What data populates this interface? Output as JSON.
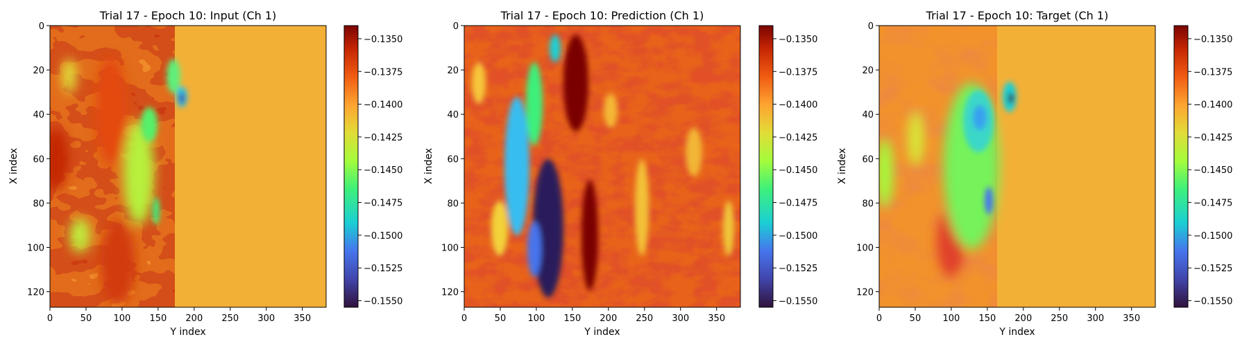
{
  "figure": {
    "colormap": "turbo",
    "colors": {
      "background": "#ffffff",
      "axes_frame": "#000000"
    }
  },
  "chart_data": [
    {
      "type": "heatmap",
      "id": "input",
      "title": "Trial 17 - Epoch 10: Input (Ch 1)",
      "xlabel": "Y index",
      "ylabel": "X index",
      "xlim": [
        0,
        383
      ],
      "ylim": [
        127,
        0
      ],
      "xticks": [
        0,
        50,
        100,
        150,
        200,
        250,
        300,
        350
      ],
      "yticks": [
        0,
        20,
        40,
        60,
        80,
        100,
        120
      ],
      "colorbar": {
        "vmin": -0.1555,
        "vmax": -0.134,
        "ticks": [
          -0.135,
          -0.1375,
          -0.14,
          -0.1425,
          -0.145,
          -0.1475,
          -0.15,
          -0.1525,
          -0.155
        ],
        "tick_labels": [
          "−0.1350",
          "−0.1375",
          "−0.1400",
          "−0.1425",
          "−0.1450",
          "−0.1475",
          "−0.1500",
          "−0.1525",
          "−0.1550"
        ]
      }
    },
    {
      "type": "heatmap",
      "id": "prediction",
      "title": "Trial 17 - Epoch 10: Prediction (Ch 1)",
      "xlabel": "Y index",
      "ylabel": "X index",
      "xlim": [
        0,
        383
      ],
      "ylim": [
        127,
        0
      ],
      "xticks": [
        0,
        50,
        100,
        150,
        200,
        250,
        300,
        350
      ],
      "yticks": [
        0,
        20,
        40,
        60,
        80,
        100,
        120
      ],
      "colorbar": {
        "vmin": -0.1555,
        "vmax": -0.134,
        "ticks": [
          -0.135,
          -0.1375,
          -0.14,
          -0.1425,
          -0.145,
          -0.1475,
          -0.15,
          -0.1525,
          -0.155
        ],
        "tick_labels": [
          "−0.1350",
          "−0.1375",
          "−0.1400",
          "−0.1425",
          "−0.1450",
          "−0.1475",
          "−0.1500",
          "−0.1525",
          "−0.1550"
        ]
      }
    },
    {
      "type": "heatmap",
      "id": "target",
      "title": "Trial 17 - Epoch 10: Target (Ch 1)",
      "xlabel": "Y index",
      "ylabel": "X index",
      "xlim": [
        0,
        383
      ],
      "ylim": [
        127,
        0
      ],
      "xticks": [
        0,
        50,
        100,
        150,
        200,
        250,
        300,
        350
      ],
      "yticks": [
        0,
        20,
        40,
        60,
        80,
        100,
        120
      ],
      "colorbar": {
        "vmin": -0.1555,
        "vmax": -0.134,
        "ticks": [
          -0.135,
          -0.1375,
          -0.14,
          -0.1425,
          -0.145,
          -0.1475,
          -0.15,
          -0.1525,
          -0.155
        ],
        "tick_labels": [
          "−0.1350",
          "−0.1375",
          "−0.1400",
          "−0.1425",
          "−0.1450",
          "−0.1475",
          "−0.1500",
          "−0.1525",
          "−0.1550"
        ]
      }
    }
  ]
}
